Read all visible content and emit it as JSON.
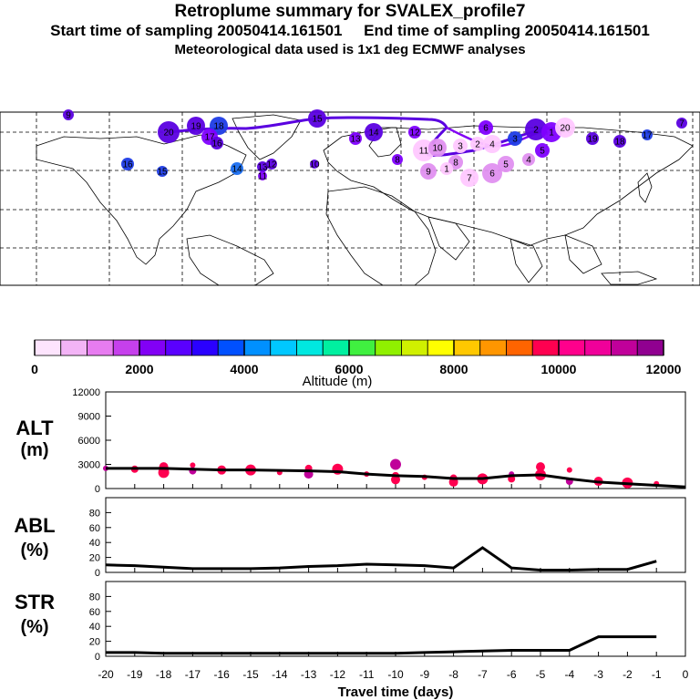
{
  "header": {
    "title": "Retroplume summary for SVALEX_profile7",
    "line2": "Start time of sampling 20050414.161501     End time of sampling 20050414.161501",
    "line3": "Meteorological data used is 1x1 deg ECMWF analyses"
  },
  "map": {
    "trajectory_days": [
      "20",
      "19",
      "18",
      "17",
      "16",
      "15",
      "14",
      "13",
      "12",
      "11",
      "10",
      "9",
      "8",
      "7",
      "6",
      "5",
      "4",
      "3",
      "2",
      "1"
    ],
    "cluster_label_colors": [
      "#ffc8ff",
      "#e090f0",
      "#8000ff",
      "#5a00e0",
      "#1e3ce6",
      "#1a6ef0"
    ]
  },
  "colorbar": {
    "colors": [
      "#fde4fd",
      "#f3b4f6",
      "#e77cf0",
      "#c640ec",
      "#8200f5",
      "#5a00ff",
      "#2a00ff",
      "#0050ff",
      "#0090ff",
      "#00c8ff",
      "#00e8e0",
      "#00f0a0",
      "#40f040",
      "#90f000",
      "#d0f000",
      "#ffff00",
      "#ffc800",
      "#ff9600",
      "#ff6400",
      "#ff0050",
      "#ff008c",
      "#f0009a",
      "#c0009a",
      "#900090"
    ],
    "tick_labels": [
      "0",
      "2000",
      "4000",
      "6000",
      "8000",
      "10000",
      "12000"
    ],
    "xlabel": "Altitude (m)"
  },
  "chart_data": [
    {
      "type": "line",
      "panel": "ALT",
      "ylabel_top": "ALT",
      "ylabel_bottom": "(m)",
      "ylim": [
        0,
        12000
      ],
      "yticks": [
        "12000",
        "9000",
        "6000",
        "3000",
        "0"
      ],
      "x": [
        -20,
        -19,
        -18,
        -17,
        -16,
        -15,
        -14,
        -13,
        -12,
        -11,
        -10,
        -9,
        -8,
        -7,
        -6,
        -5,
        -4,
        -3,
        -2,
        -1,
        0
      ],
      "values": [
        2500,
        2500,
        2500,
        2400,
        2300,
        2300,
        2250,
        2200,
        2100,
        1800,
        1600,
        1500,
        1250,
        1250,
        1600,
        1700,
        1200,
        800,
        600,
        400,
        200
      ],
      "scatter": [
        {
          "x": -20,
          "y": 2500
        },
        {
          "x": -19,
          "y": 2400
        },
        {
          "x": -18,
          "y": 2700
        },
        {
          "x": -18,
          "y": 2000
        },
        {
          "x": -17,
          "y": 2900
        },
        {
          "x": -17,
          "y": 2200
        },
        {
          "x": -16,
          "y": 2300
        },
        {
          "x": -15,
          "y": 2300
        },
        {
          "x": -14,
          "y": 2000
        },
        {
          "x": -13,
          "y": 2500
        },
        {
          "x": -13,
          "y": 1800
        },
        {
          "x": -12,
          "y": 2400
        },
        {
          "x": -11,
          "y": 1800
        },
        {
          "x": -10,
          "y": 1600
        },
        {
          "x": -10,
          "y": 1100
        },
        {
          "x": -10,
          "y": 3000
        },
        {
          "x": -9,
          "y": 1400
        },
        {
          "x": -8,
          "y": 1300
        },
        {
          "x": -8,
          "y": 800
        },
        {
          "x": -7,
          "y": 1200
        },
        {
          "x": -6,
          "y": 1800
        },
        {
          "x": -6,
          "y": 1200
        },
        {
          "x": -5,
          "y": 2700
        },
        {
          "x": -5,
          "y": 1700
        },
        {
          "x": -4,
          "y": 2300
        },
        {
          "x": -4,
          "y": 900
        },
        {
          "x": -3,
          "y": 900
        },
        {
          "x": -2,
          "y": 700
        },
        {
          "x": -1,
          "y": 600
        }
      ]
    },
    {
      "type": "line",
      "panel": "ABL",
      "ylabel_top": "ABL",
      "ylabel_bottom": "(%)",
      "ylim": [
        0,
        100
      ],
      "yticks": [
        "80",
        "60",
        "40",
        "20",
        "0"
      ],
      "x": [
        -20,
        -19,
        -18,
        -17,
        -16,
        -15,
        -14,
        -13,
        -12,
        -11,
        -10,
        -9,
        -8,
        -7,
        -6,
        -5,
        -4,
        -3,
        -2,
        -1
      ],
      "values": [
        10,
        9,
        7,
        5,
        5,
        5,
        6,
        8,
        9,
        11,
        10,
        9,
        6,
        33,
        6,
        3,
        3,
        4,
        4,
        15
      ]
    },
    {
      "type": "line",
      "panel": "STR",
      "ylabel_top": "STR",
      "ylabel_bottom": "(%)",
      "ylim": [
        0,
        100
      ],
      "yticks": [
        "80",
        "60",
        "40",
        "20",
        "0"
      ],
      "x": [
        -20,
        -19,
        -18,
        -17,
        -16,
        -15,
        -14,
        -13,
        -12,
        -11,
        -10,
        -9,
        -8,
        -7,
        -6,
        -5,
        -4,
        -3,
        -2,
        -1
      ],
      "values": [
        5,
        5,
        4,
        4,
        4,
        4,
        4,
        4,
        4,
        4,
        4,
        5,
        6,
        7,
        8,
        8,
        8,
        26,
        26,
        26
      ],
      "xlabel": "Travel time (days)",
      "xticks": [
        "-20",
        "-19",
        "-18",
        "-17",
        "-16",
        "-15",
        "-14",
        "-13",
        "-12",
        "-11",
        "-10",
        "-9",
        "-8",
        "-7",
        "-6",
        "-5",
        "-4",
        "-3",
        "-2",
        "-1",
        "0"
      ]
    }
  ]
}
